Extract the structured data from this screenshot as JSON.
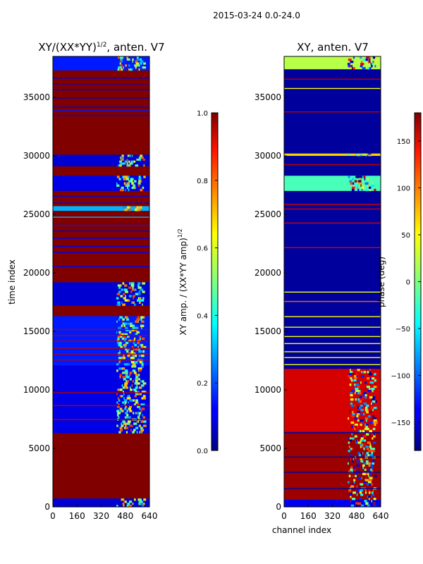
{
  "figure": {
    "suptitle": "2015-03-24 0.0-24.0"
  },
  "chart_data": [
    {
      "type": "heatmap",
      "panel": "left",
      "title": "XY/(XX*YY)",
      "title_exponent": "1/2",
      "title_suffix": ", anten. V7",
      "xlabel": "",
      "ylabel": "time index",
      "xlim": [
        0,
        640
      ],
      "ylim": [
        0,
        38500
      ],
      "xticks": [
        0,
        160,
        320,
        480,
        640
      ],
      "yticks": [
        0,
        5000,
        10000,
        15000,
        20000,
        25000,
        30000,
        35000
      ],
      "colormap": "jet",
      "colorbar": {
        "label": "XY amp. / (XX*YY amp)",
        "label_exponent": "1/2",
        "range": [
          0.0,
          1.0
        ],
        "ticks": [
          "0.0",
          "0.2",
          "0.4",
          "0.6",
          "0.8",
          "1.0"
        ],
        "tick_values": [
          0.0,
          0.2,
          0.4,
          0.6,
          0.8,
          1.0
        ]
      },
      "base_value": 1.0,
      "dark_bands": [
        {
          "t0": 0,
          "t1": 720,
          "v": 0.08
        },
        {
          "t0": 6300,
          "t1": 12100,
          "v": 0.1
        },
        {
          "t0": 12100,
          "t1": 16300,
          "v": 0.15
        },
        {
          "t0": 17200,
          "t1": 19200,
          "v": 0.08
        },
        {
          "t0": 29100,
          "t1": 30100,
          "v": 0.08
        },
        {
          "t0": 25300,
          "t1": 25700,
          "v": 0.3
        },
        {
          "t0": 27000,
          "t1": 28300,
          "v": 0.1
        },
        {
          "t0": 37300,
          "t1": 38500,
          "v": 0.15
        }
      ],
      "thin_lines": [
        {
          "t": 20600,
          "v": 0.1
        },
        {
          "t": 21800,
          "v": 0.1
        },
        {
          "t": 22300,
          "v": 0.1
        },
        {
          "t": 23000,
          "v": 0.1
        },
        {
          "t": 23600,
          "v": 0.1
        },
        {
          "t": 24100,
          "v": 0.15
        },
        {
          "t": 24800,
          "v": 0.3
        },
        {
          "t": 26000,
          "v": 0.1
        },
        {
          "t": 26600,
          "v": 0.1
        },
        {
          "t": 33500,
          "v": 0.1
        },
        {
          "t": 33900,
          "v": 0.15
        },
        {
          "t": 34200,
          "v": 0.1
        },
        {
          "t": 35000,
          "v": 0.1
        },
        {
          "t": 35700,
          "v": 0.1
        },
        {
          "t": 36200,
          "v": 0.1
        },
        {
          "t": 36700,
          "v": 0.1
        }
      ],
      "red_lines_in_bands": [
        7500,
        8700,
        9800,
        12600,
        13100,
        13600,
        14200,
        14700,
        15200
      ]
    },
    {
      "type": "heatmap",
      "panel": "right",
      "title": "XY, anten. V7",
      "xlabel": "channel index",
      "ylabel": "",
      "xlim": [
        0,
        640
      ],
      "ylim": [
        0,
        38500
      ],
      "xticks": [
        0,
        160,
        320,
        480,
        640
      ],
      "yticks": [
        0,
        5000,
        10000,
        15000,
        20000,
        25000,
        30000,
        35000
      ],
      "colormap": "jet",
      "colorbar": {
        "label": "phase (deg)",
        "range": [
          -180,
          180
        ],
        "ticks": [
          "−150",
          "−100",
          "−50",
          "0",
          "50",
          "100",
          "150"
        ],
        "tick_values": [
          -150,
          -100,
          -50,
          0,
          50,
          100,
          150
        ]
      },
      "base_value": -170,
      "bands": [
        {
          "t0": 0,
          "t1": 600,
          "v": -140
        },
        {
          "t0": 600,
          "t1": 6300,
          "v": 170
        },
        {
          "t0": 6400,
          "t1": 11800,
          "v": 150
        },
        {
          "t0": 27000,
          "t1": 28300,
          "v": -20
        },
        {
          "t0": 30000,
          "t1": 30200,
          "v": 60
        },
        {
          "t0": 37400,
          "t1": 38500,
          "v": 20
        }
      ],
      "thin_lines": [
        {
          "t": 1600,
          "v": -170
        },
        {
          "t": 3000,
          "v": -170
        },
        {
          "t": 4300,
          "v": -170
        },
        {
          "t": 12200,
          "v": 40
        },
        {
          "t": 12800,
          "v": 40
        },
        {
          "t": 13300,
          "v": 40
        },
        {
          "t": 14000,
          "v": 40
        },
        {
          "t": 14600,
          "v": 40
        },
        {
          "t": 15400,
          "v": 40
        },
        {
          "t": 16300,
          "v": 40
        },
        {
          "t": 17600,
          "v": 100
        },
        {
          "t": 18400,
          "v": 40
        },
        {
          "t": 22200,
          "v": 150
        },
        {
          "t": 24300,
          "v": 150
        },
        {
          "t": 25500,
          "v": 150
        },
        {
          "t": 25900,
          "v": 150
        },
        {
          "t": 29300,
          "v": 160
        },
        {
          "t": 33800,
          "v": 160
        },
        {
          "t": 35800,
          "v": 40
        },
        {
          "t": 36600,
          "v": 160
        }
      ]
    }
  ]
}
